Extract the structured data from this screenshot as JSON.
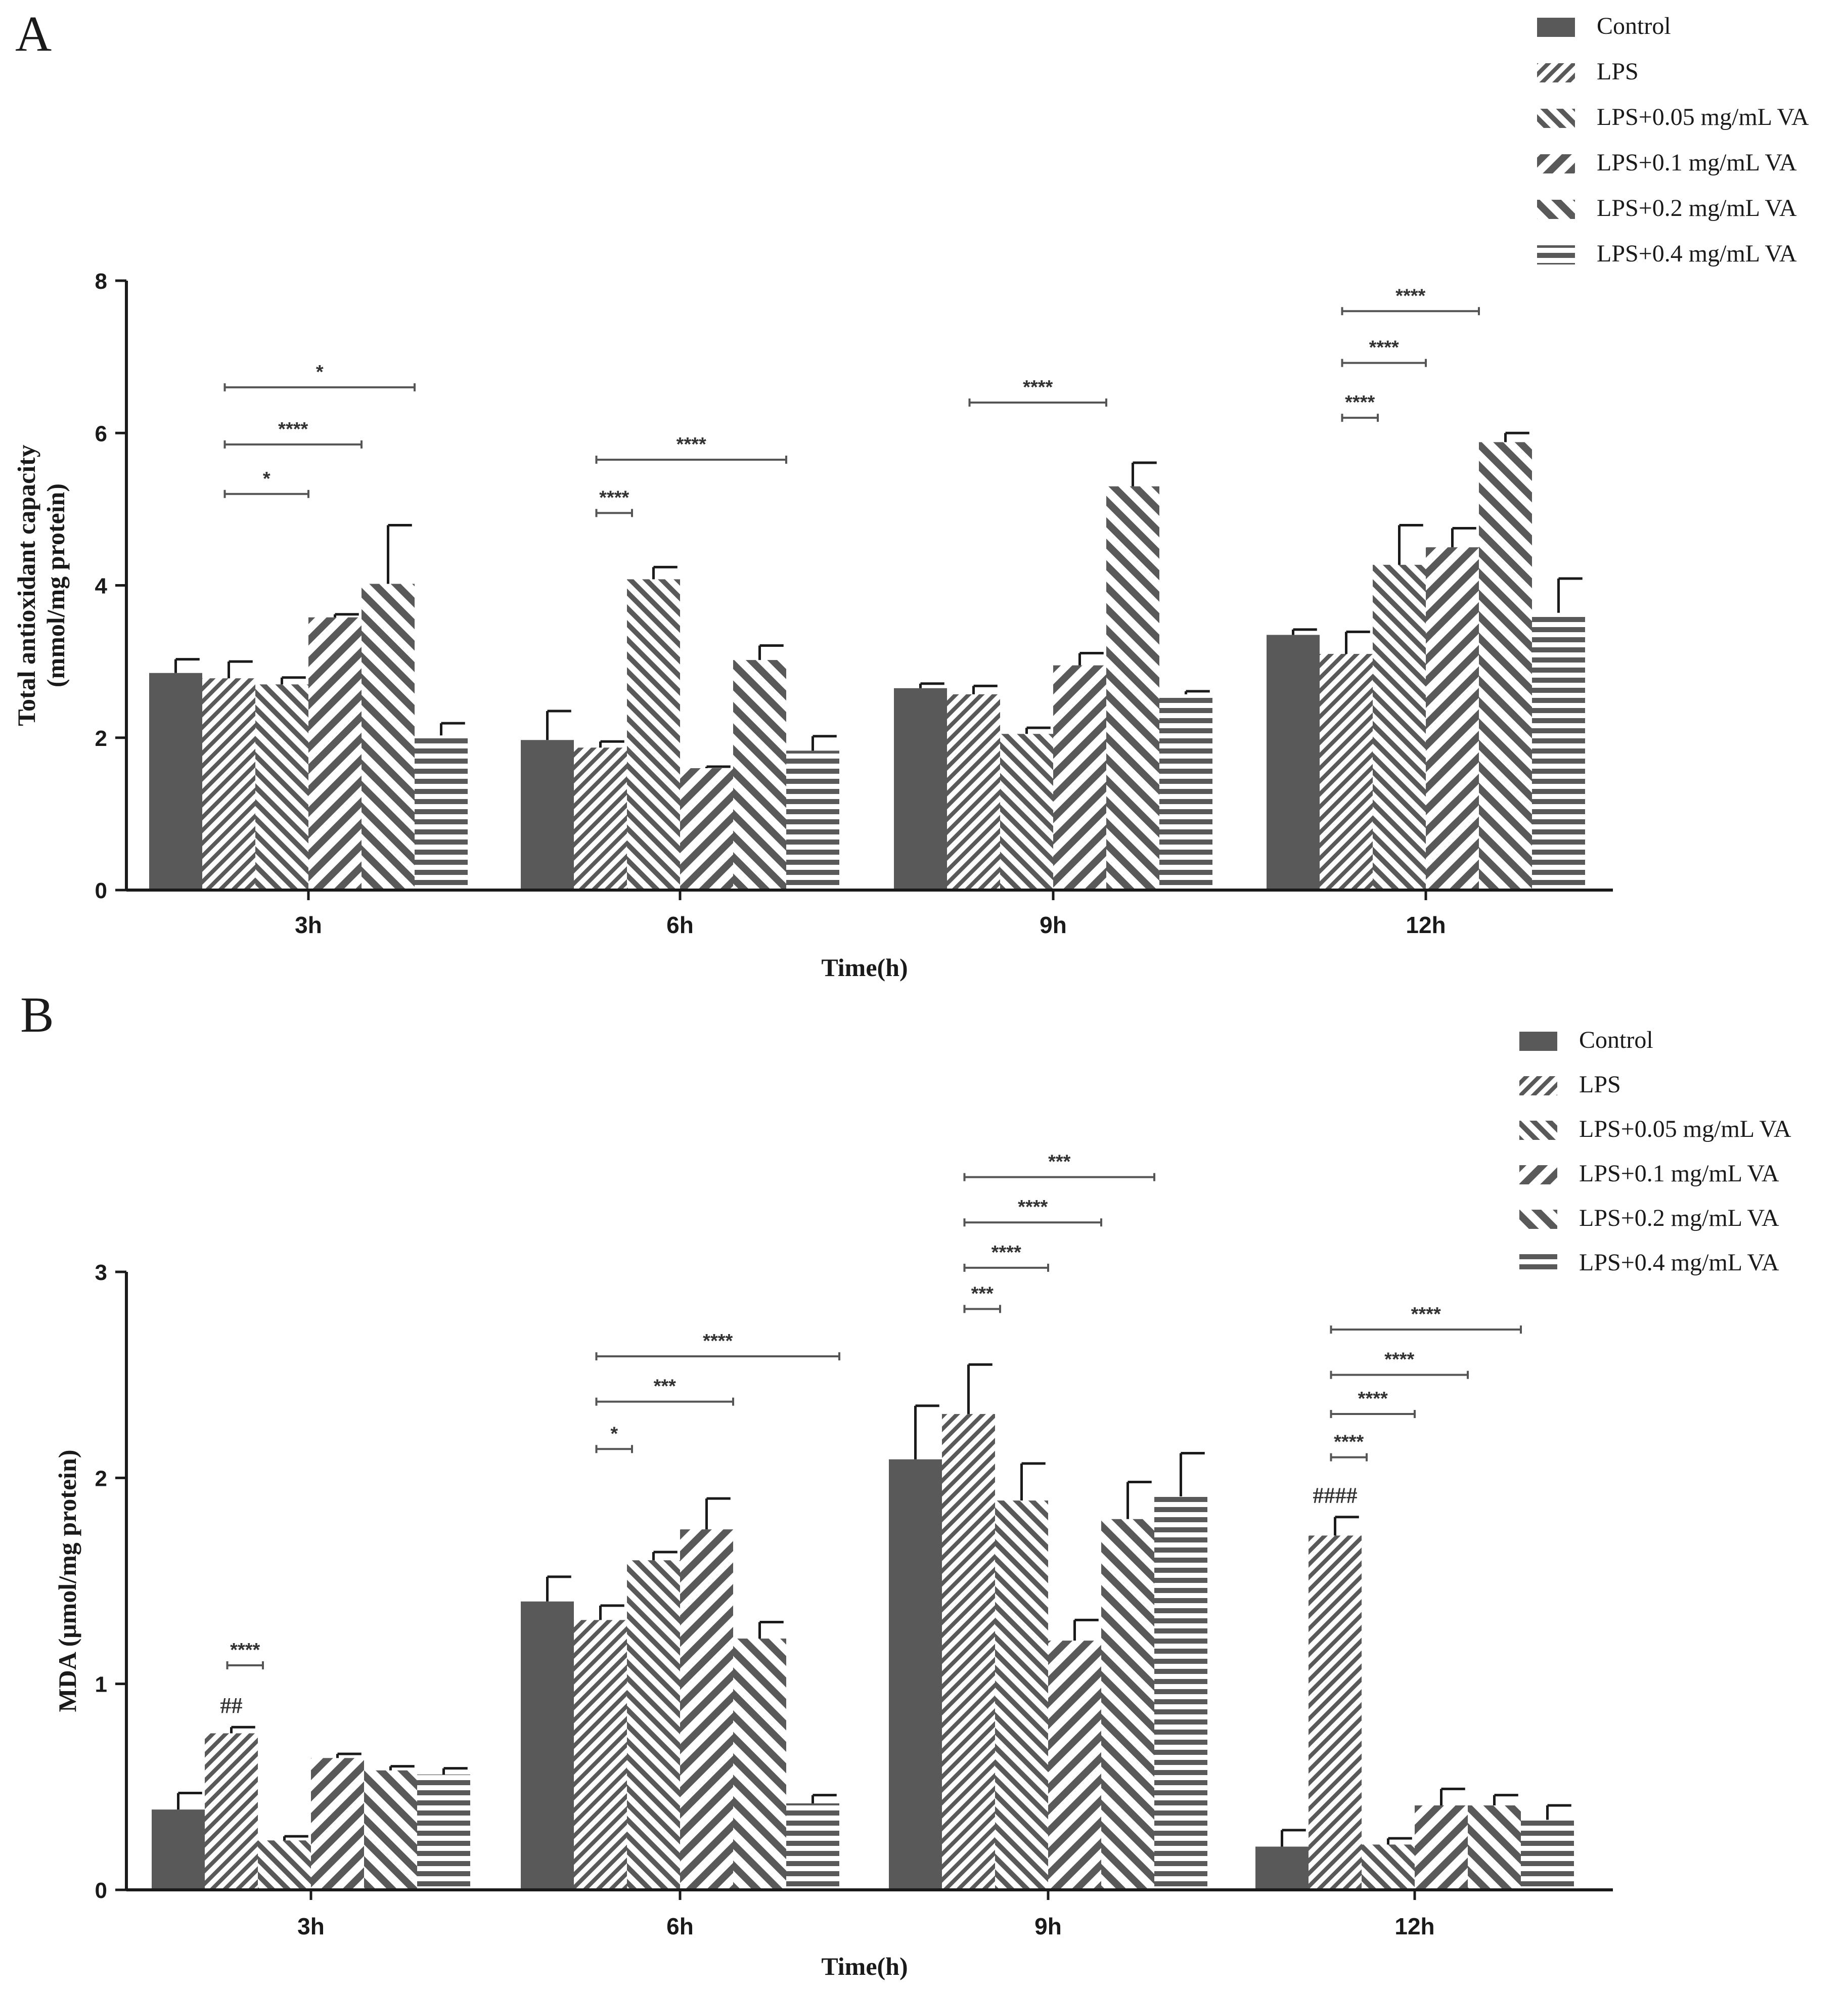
{
  "colors": {
    "dark": "#595959",
    "stripe": "#595959",
    "background": "#ffffff",
    "axis": "#1a1a1a"
  },
  "legend_items": [
    {
      "label": "Control",
      "pattern": "solid"
    },
    {
      "label": "LPS",
      "pattern": "diag-back-dense"
    },
    {
      "label": "LPS+0.05 mg/mL VA",
      "pattern": "diag-fwd"
    },
    {
      "label": "LPS+0.1 mg/mL VA",
      "pattern": "diag-back-wide"
    },
    {
      "label": "LPS+0.2 mg/mL VA",
      "pattern": "diag-fwd-wide"
    },
    {
      "label": "LPS+0.4 mg/mL VA",
      "pattern": "horizontal"
    }
  ],
  "chart_data": [
    {
      "panel": "A",
      "type": "bar",
      "xlabel": "Time(h)",
      "ylabel_lines": [
        "Total antioxidant capacity",
        "(mmol/mg protein)"
      ],
      "ylim": [
        0,
        8
      ],
      "yticks": [
        0,
        2,
        4,
        6,
        8
      ],
      "categories": [
        "3h",
        "6h",
        "9h",
        "12h"
      ],
      "series": [
        {
          "name": "Control",
          "values": [
            2.85,
            1.97,
            2.65,
            3.35
          ],
          "errors": [
            0.18,
            0.38,
            0.06,
            0.07
          ]
        },
        {
          "name": "LPS",
          "values": [
            2.78,
            1.87,
            2.57,
            3.1
          ],
          "errors": [
            0.22,
            0.08,
            0.11,
            0.29
          ]
        },
        {
          "name": "LPS+0.05 mg/mL VA",
          "values": [
            2.7,
            4.08,
            2.05,
            4.27
          ],
          "errors": [
            0.09,
            0.16,
            0.08,
            0.52
          ]
        },
        {
          "name": "LPS+0.1 mg/mL VA",
          "values": [
            3.58,
            1.6,
            2.95,
            4.5
          ],
          "errors": [
            0.04,
            0.02,
            0.16,
            0.25
          ]
        },
        {
          "name": "LPS+0.2 mg/mL VA",
          "values": [
            4.02,
            3.02,
            5.3,
            5.88
          ],
          "errors": [
            0.77,
            0.19,
            0.31,
            0.12
          ]
        },
        {
          "name": "LPS+0.4 mg/mL VA",
          "values": [
            2.03,
            1.83,
            2.57,
            3.64
          ],
          "errors": [
            0.16,
            0.19,
            0.04,
            0.45
          ]
        }
      ],
      "significance": [
        {
          "group": 0,
          "from": 1,
          "to": 2,
          "label": "*",
          "level": 5.2
        },
        {
          "group": 0,
          "from": 1,
          "to": 3,
          "label": "****",
          "level": 5.85
        },
        {
          "group": 0,
          "from": 1,
          "to": 4,
          "label": "*",
          "level": 6.6
        },
        {
          "group": 1,
          "from": 1,
          "to": 1,
          "label": "****",
          "level": 4.95
        },
        {
          "group": 1,
          "from": 1,
          "to": 4,
          "label": "****",
          "level": 5.65
        },
        {
          "group": 2,
          "from": 1,
          "to": 3,
          "label": "****",
          "level": 6.4
        },
        {
          "group": 3,
          "from": 1,
          "to": 1,
          "label": "****",
          "level": 6.2
        },
        {
          "group": 3,
          "from": 1,
          "to": 2,
          "label": "****",
          "level": 6.92
        },
        {
          "group": 3,
          "from": 1,
          "to": 3,
          "label": "****",
          "level": 7.6
        }
      ],
      "markers": []
    },
    {
      "panel": "B",
      "type": "bar",
      "xlabel": "Time(h)",
      "ylabel_lines": [
        "MDA (μmol/mg protein)"
      ],
      "ylim": [
        0,
        3
      ],
      "yticks": [
        0,
        1,
        2,
        3
      ],
      "categories": [
        "3h",
        "6h",
        "9h",
        "12h"
      ],
      "series": [
        {
          "name": "Control",
          "values": [
            0.39,
            1.4,
            2.09,
            0.21
          ],
          "errors": [
            0.08,
            0.12,
            0.26,
            0.08
          ]
        },
        {
          "name": "LPS",
          "values": [
            0.76,
            1.31,
            2.31,
            1.72
          ],
          "errors": [
            0.03,
            0.07,
            0.24,
            0.09
          ]
        },
        {
          "name": "LPS+0.05 mg/mL VA",
          "values": [
            0.24,
            1.6,
            1.89,
            0.22
          ],
          "errors": [
            0.02,
            0.04,
            0.18,
            0.03
          ]
        },
        {
          "name": "LPS+0.1 mg/mL VA",
          "values": [
            0.64,
            1.75,
            1.21,
            0.41
          ],
          "errors": [
            0.02,
            0.15,
            0.1,
            0.08
          ]
        },
        {
          "name": "LPS+0.2 mg/mL VA",
          "values": [
            0.58,
            1.22,
            1.8,
            0.41
          ],
          "errors": [
            0.02,
            0.08,
            0.18,
            0.05
          ]
        },
        {
          "name": "LPS+0.4 mg/mL VA",
          "values": [
            0.56,
            0.42,
            1.91,
            0.34
          ],
          "errors": [
            0.03,
            0.04,
            0.21,
            0.07
          ]
        }
      ],
      "significance": [
        {
          "group": 0,
          "from": 1,
          "to": 1,
          "label": "****",
          "level": 1.09
        },
        {
          "group": 1,
          "from": 1,
          "to": 1,
          "label": "*",
          "level": 2.14
        },
        {
          "group": 1,
          "from": 1,
          "to": 3,
          "label": "***",
          "level": 2.37
        },
        {
          "group": 1,
          "from": 1,
          "to": 5,
          "label": "****",
          "level": 2.59
        },
        {
          "group": 2,
          "from": 1,
          "to": 1,
          "label": "***",
          "level": 2.82
        },
        {
          "group": 2,
          "from": 1,
          "to": 2,
          "label": "****",
          "level": 3.02
        },
        {
          "group": 2,
          "from": 1,
          "to": 3,
          "label": "****",
          "level": 3.24
        },
        {
          "group": 2,
          "from": 1,
          "to": 4,
          "label": "***",
          "level": 3.46
        },
        {
          "group": 3,
          "from": 1,
          "to": 1,
          "label": "****",
          "level": 2.1
        },
        {
          "group": 3,
          "from": 1,
          "to": 2,
          "label": "****",
          "level": 2.31
        },
        {
          "group": 3,
          "from": 1,
          "to": 3,
          "label": "****",
          "level": 2.5
        },
        {
          "group": 3,
          "from": 1,
          "to": 4,
          "label": "****",
          "level": 2.72
        }
      ],
      "markers": [
        {
          "group": 0,
          "series": 1,
          "label": "##"
        },
        {
          "group": 3,
          "series": 1,
          "label": "####"
        }
      ]
    }
  ]
}
